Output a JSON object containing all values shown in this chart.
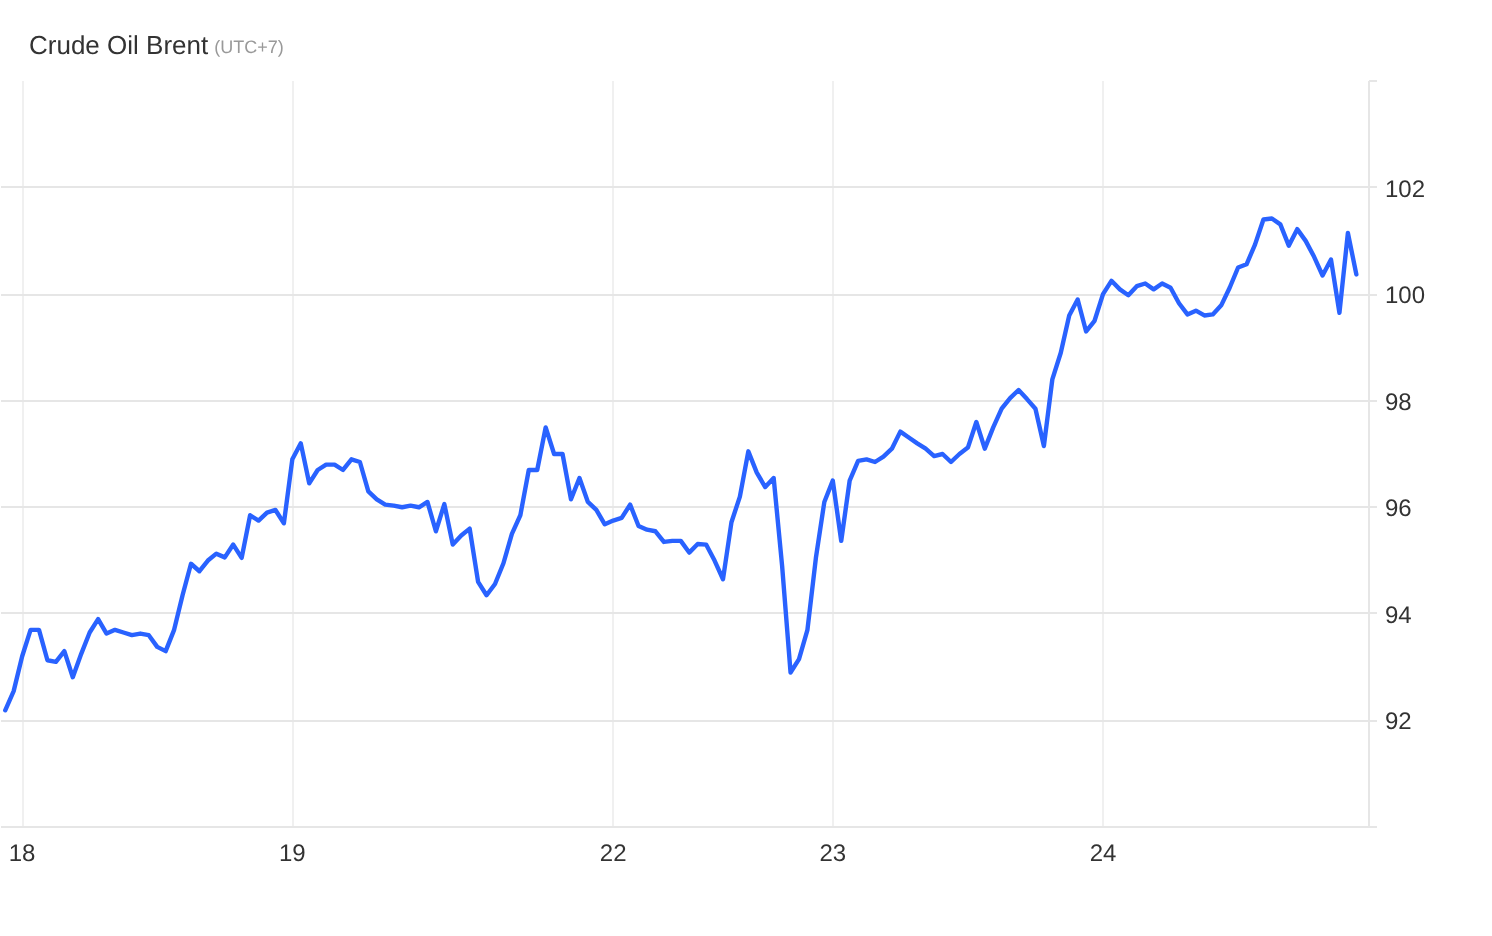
{
  "chart_data": {
    "type": "line",
    "title": "Crude Oil Brent",
    "subtitle": "(UTC+7)",
    "categories": [
      null,
      null,
      "18",
      null,
      null,
      null,
      null,
      null,
      null,
      null,
      null,
      null,
      null,
      null,
      null,
      null,
      null,
      null,
      null,
      null,
      null,
      null,
      null,
      null,
      null,
      null,
      null,
      null,
      null,
      null,
      null,
      null,
      null,
      null,
      "19",
      null,
      null,
      null,
      null,
      null,
      null,
      null,
      null,
      null,
      null,
      null,
      null,
      null,
      null,
      null,
      null,
      null,
      null,
      null,
      null,
      null,
      null,
      null,
      null,
      null,
      null,
      null,
      null,
      null,
      null,
      null,
      null,
      null,
      null,
      null,
      null,
      null,
      "22",
      null,
      null,
      null,
      null,
      null,
      null,
      null,
      null,
      null,
      null,
      null,
      null,
      null,
      null,
      null,
      null,
      null,
      null,
      null,
      null,
      null,
      null,
      null,
      null,
      null,
      "23",
      null,
      null,
      null,
      null,
      null,
      null,
      null,
      null,
      null,
      null,
      null,
      null,
      null,
      null,
      null,
      null,
      null,
      null,
      null,
      null,
      null,
      null,
      null,
      null,
      null,
      null,
      null,
      null,
      null,
      null,
      null,
      "24",
      null,
      null,
      null,
      null,
      null,
      null,
      null,
      null,
      null,
      null,
      null,
      null,
      null,
      null,
      null,
      null,
      null,
      null,
      null,
      null,
      null,
      null,
      null,
      null,
      null,
      null,
      null,
      null,
      null,
      null,
      null
    ],
    "series": [
      {
        "color": "#2962ff",
        "values": [
          92.19,
          92.55,
          93.2,
          93.7,
          93.7,
          93.13,
          93.1,
          93.3,
          92.81,
          93.25,
          93.65,
          93.9,
          93.63,
          93.7,
          93.65,
          93.6,
          93.63,
          93.6,
          93.38,
          93.3,
          93.7,
          94.35,
          94.94,
          94.8,
          95.0,
          95.13,
          95.06,
          95.3,
          95.05,
          95.85,
          95.75,
          95.9,
          95.95,
          95.7,
          96.9,
          97.2,
          96.45,
          96.7,
          96.8,
          96.8,
          96.7,
          96.9,
          96.85,
          96.3,
          96.15,
          96.05,
          96.03,
          96.0,
          96.03,
          96.0,
          96.1,
          95.55,
          96.06,
          95.3,
          95.47,
          95.6,
          94.6,
          94.35,
          94.56,
          94.95,
          95.5,
          95.85,
          96.7,
          96.7,
          97.5,
          97.0,
          97.0,
          96.15,
          96.55,
          96.1,
          95.95,
          95.68,
          95.75,
          95.8,
          96.05,
          95.65,
          95.58,
          95.55,
          95.35,
          95.37,
          95.37,
          95.15,
          95.31,
          95.3,
          95.0,
          94.65,
          95.72,
          96.2,
          97.05,
          96.65,
          96.38,
          96.55,
          94.9,
          92.9,
          93.15,
          93.7,
          95.05,
          96.1,
          96.5,
          95.37,
          96.5,
          96.87,
          96.9,
          96.85,
          96.95,
          97.1,
          97.42,
          97.31,
          97.2,
          97.1,
          96.96,
          97.0,
          96.85,
          97.0,
          97.12,
          97.6,
          97.1,
          97.5,
          97.85,
          98.05,
          98.2,
          98.03,
          97.85,
          97.15,
          98.4,
          98.9,
          99.6,
          99.9,
          99.3,
          99.5,
          100.0,
          100.25,
          100.09,
          99.98,
          100.15,
          100.2,
          100.09,
          100.2,
          100.12,
          99.83,
          99.62,
          99.69,
          99.6,
          99.62,
          99.79,
          100.12,
          100.5,
          100.56,
          100.93,
          101.4,
          101.42,
          101.31,
          100.91,
          101.22,
          101.0,
          100.7,
          100.35,
          100.65,
          99.65,
          101.15,
          100.37,
          null
        ]
      }
    ],
    "ylim": [
      90,
      104
    ],
    "yticks": [
      {
        "value": 90,
        "label": null
      },
      92,
      94,
      96,
      98,
      100,
      102,
      {
        "value": 104,
        "label": null
      }
    ],
    "grid": true,
    "line_style": "solid"
  }
}
